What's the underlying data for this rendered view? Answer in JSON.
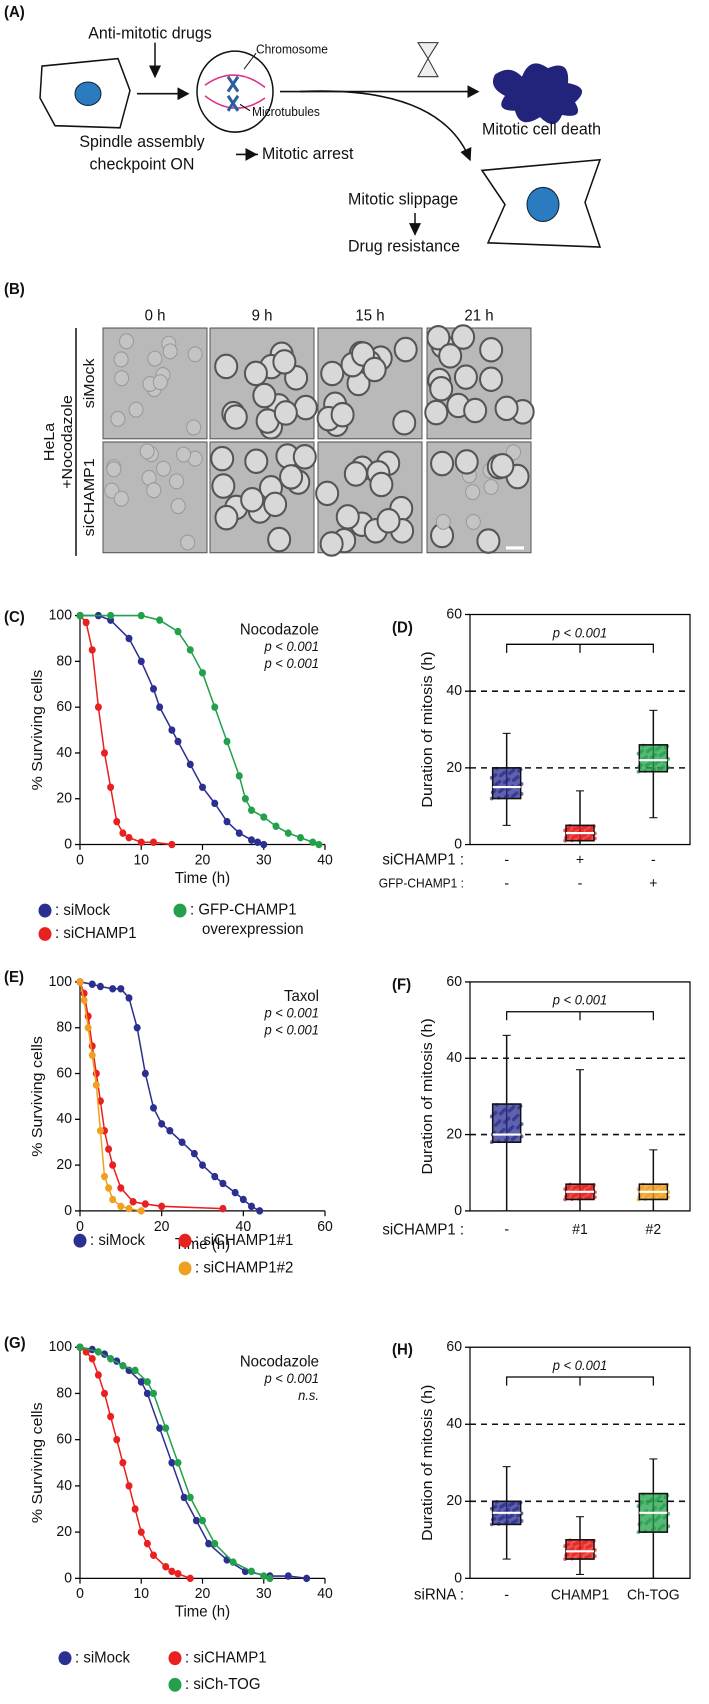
{
  "panel_labels": [
    "(A)",
    "(B)",
    "(C)",
    "(D)",
    "(E)",
    "(F)",
    "(G)",
    "(H)"
  ],
  "diagram": {
    "drugs": "Anti-mitotic drugs",
    "chromosome": "Chromosome",
    "microtubules": "Microtubules",
    "checkpoint_1": "Spindle assembly",
    "checkpoint_2": "checkpoint ON",
    "arrest": "Mitotic arrest",
    "death": "Mitotic cell death",
    "slippage": "Mitotic slippage",
    "resistance": "Drug resistance"
  },
  "micrographs": {
    "times": [
      "0 h",
      "9 h",
      "15 h",
      "21 h"
    ],
    "rows": [
      "siMock",
      "siCHAMP1"
    ],
    "cell_line": "HeLa",
    "treatment": "+Nocodazole"
  },
  "chart_data": [
    {
      "type": "line",
      "ylabel": "% Surviving cells",
      "xlabel": "Time (h)",
      "xlim": [
        0,
        40
      ],
      "xticks": [
        0,
        10,
        20,
        30,
        40
      ],
      "ylim": [
        0,
        100
      ],
      "yticks": [
        0,
        20,
        40,
        60,
        80,
        100
      ],
      "annotations": [
        {
          "text": "Nocodazole",
          "color": "#111111"
        },
        {
          "text": "p < 0.001",
          "color": "#e8201f"
        },
        {
          "text": "p < 0.001",
          "color": "#22a04b"
        }
      ],
      "series": [
        {
          "name": ": siMock",
          "color": "#2b2f8f",
          "x": [
            0,
            3,
            5,
            8,
            10,
            12,
            13,
            15,
            16,
            18,
            20,
            22,
            24,
            26,
            28,
            29,
            30
          ],
          "values": [
            100,
            100,
            98,
            90,
            80,
            68,
            60,
            50,
            45,
            35,
            25,
            18,
            10,
            5,
            2,
            1,
            0
          ]
        },
        {
          "name": ": siCHAMP1",
          "color": "#e8201f",
          "x": [
            0,
            1,
            2,
            3,
            4,
            5,
            6,
            7,
            8,
            10,
            12,
            15
          ],
          "values": [
            100,
            97,
            85,
            60,
            40,
            25,
            10,
            5,
            3,
            1,
            1,
            0
          ]
        },
        {
          "name": ": GFP-CHAMP1 overexpression",
          "color": "#22a04b",
          "x": [
            0,
            5,
            10,
            13,
            16,
            18,
            20,
            22,
            24,
            26,
            27,
            28,
            30,
            32,
            34,
            36,
            38,
            39
          ],
          "values": [
            100,
            100,
            100,
            98,
            93,
            85,
            75,
            60,
            45,
            30,
            20,
            15,
            12,
            8,
            5,
            3,
            1,
            0
          ]
        }
      ]
    },
    {
      "type": "box",
      "ylabel": "Duration of mitosis (h)",
      "ylim": [
        0,
        60
      ],
      "yticks": [
        0,
        20,
        40,
        60
      ],
      "reference_lines": [
        20,
        40
      ],
      "significance": "p < 0.001",
      "conditions": [
        {
          "name": "siCHAMP1 :",
          "levels": [
            "-",
            "+",
            "-"
          ]
        },
        {
          "name": "GFP-CHAMP1 :",
          "levels": [
            "-",
            "-",
            "+"
          ]
        }
      ],
      "boxes": [
        {
          "color": "#2b2f8f",
          "min": 5,
          "q1": 12,
          "median": 15,
          "q3": 20,
          "max": 29
        },
        {
          "color": "#e8201f",
          "min": 0,
          "q1": 1,
          "median": 3,
          "q3": 5,
          "max": 14
        },
        {
          "color": "#22a04b",
          "min": 7,
          "q1": 19,
          "median": 22,
          "q3": 26,
          "max": 35
        }
      ]
    },
    {
      "type": "line",
      "ylabel": "% Surviving cells",
      "xlabel": "Time (h)",
      "xlim": [
        0,
        60
      ],
      "xticks": [
        0,
        20,
        40,
        60
      ],
      "ylim": [
        0,
        100
      ],
      "yticks": [
        0,
        20,
        40,
        60,
        80,
        100
      ],
      "annotations": [
        {
          "text": "Taxol",
          "color": "#111111"
        },
        {
          "text": "p < 0.001",
          "color": "#e8201f"
        },
        {
          "text": "p < 0.001",
          "color": "#f0a020"
        }
      ],
      "series": [
        {
          "name": ": siMock",
          "color": "#2b2f8f",
          "x": [
            0,
            3,
            5,
            8,
            10,
            12,
            14,
            16,
            18,
            20,
            22,
            25,
            28,
            30,
            33,
            35,
            38,
            40,
            42,
            44
          ],
          "values": [
            100,
            99,
            98,
            97,
            97,
            93,
            80,
            60,
            45,
            38,
            35,
            30,
            25,
            20,
            15,
            12,
            8,
            5,
            2,
            0
          ]
        },
        {
          "name": ": siCHAMP1#1",
          "color": "#e8201f",
          "x": [
            0,
            1,
            2,
            3,
            4,
            5,
            6,
            7,
            8,
            10,
            13,
            16,
            20,
            35
          ],
          "values": [
            100,
            95,
            85,
            72,
            60,
            48,
            35,
            27,
            20,
            10,
            4,
            3,
            2,
            1
          ]
        },
        {
          "name": ": siCHAMP1#2",
          "color": "#f0a020",
          "x": [
            0,
            1,
            2,
            3,
            4,
            5,
            6,
            7,
            8,
            10,
            12,
            15
          ],
          "values": [
            100,
            92,
            80,
            68,
            55,
            35,
            15,
            10,
            5,
            2,
            1,
            0
          ]
        }
      ]
    },
    {
      "type": "box",
      "ylabel": "Duration of mitosis (h)",
      "ylim": [
        0,
        60
      ],
      "yticks": [
        0,
        20,
        40,
        60
      ],
      "reference_lines": [
        20,
        40
      ],
      "significance": "p < 0.001",
      "conditions": [
        {
          "name": "siCHAMP1 :",
          "levels": [
            "-",
            "#1",
            "#2"
          ]
        }
      ],
      "boxes": [
        {
          "color": "#2b2f8f",
          "min": 0,
          "q1": 18,
          "median": 20,
          "q3": 28,
          "max": 46
        },
        {
          "color": "#e8201f",
          "min": 0,
          "q1": 3,
          "median": 5,
          "q3": 7,
          "max": 37
        },
        {
          "color": "#f0a020",
          "min": 0,
          "q1": 3,
          "median": 5,
          "q3": 7,
          "max": 16
        }
      ]
    },
    {
      "type": "line",
      "ylabel": "% Surviving cells",
      "xlabel": "Time (h)",
      "xlim": [
        0,
        40
      ],
      "xticks": [
        0,
        10,
        20,
        30,
        40
      ],
      "ylim": [
        0,
        100
      ],
      "yticks": [
        0,
        20,
        40,
        60,
        80,
        100
      ],
      "annotations": [
        {
          "text": "Nocodazole",
          "color": "#111111"
        },
        {
          "text": "p < 0.001",
          "color": "#e8201f"
        },
        {
          "text": "n.s.",
          "color": "#22a04b"
        }
      ],
      "series": [
        {
          "name": ": siMock",
          "color": "#2b2f8f",
          "x": [
            0,
            2,
            4,
            6,
            8,
            10,
            11,
            13,
            15,
            17,
            19,
            21,
            24,
            27,
            31,
            34,
            37
          ],
          "values": [
            100,
            99,
            97,
            94,
            90,
            85,
            80,
            65,
            50,
            35,
            25,
            15,
            8,
            3,
            1,
            1,
            0
          ]
        },
        {
          "name": ": siCHAMP1",
          "color": "#e8201f",
          "x": [
            0,
            1,
            2,
            3,
            4,
            5,
            6,
            7,
            8,
            9,
            10,
            11,
            12,
            14,
            15,
            16,
            18
          ],
          "values": [
            100,
            98,
            95,
            88,
            80,
            70,
            60,
            50,
            40,
            30,
            20,
            15,
            10,
            5,
            3,
            2,
            0
          ]
        },
        {
          "name": ": siCh-TOG",
          "color": "#22a04b",
          "x": [
            0,
            3,
            5,
            7,
            9,
            11,
            12,
            14,
            16,
            18,
            20,
            22,
            25,
            28,
            30,
            31
          ],
          "values": [
            100,
            98,
            95,
            92,
            90,
            85,
            80,
            65,
            50,
            35,
            25,
            15,
            7,
            3,
            1,
            0
          ]
        }
      ]
    },
    {
      "type": "box",
      "ylabel": "Duration of mitosis (h)",
      "ylim": [
        0,
        60
      ],
      "yticks": [
        0,
        20,
        40,
        60
      ],
      "reference_lines": [
        20,
        40
      ],
      "significance": "p < 0.001",
      "conditions": [
        {
          "name": "siRNA :",
          "levels": [
            "-",
            "CHAMP1",
            "Ch-TOG"
          ]
        }
      ],
      "boxes": [
        {
          "color": "#2b2f8f",
          "min": 5,
          "q1": 14,
          "median": 17,
          "q3": 20,
          "max": 29
        },
        {
          "color": "#e8201f",
          "min": 1,
          "q1": 5,
          "median": 7,
          "q3": 10,
          "max": 16
        },
        {
          "color": "#22a04b",
          "min": 0,
          "q1": 12,
          "median": 17,
          "q3": 22,
          "max": 31
        }
      ]
    }
  ]
}
